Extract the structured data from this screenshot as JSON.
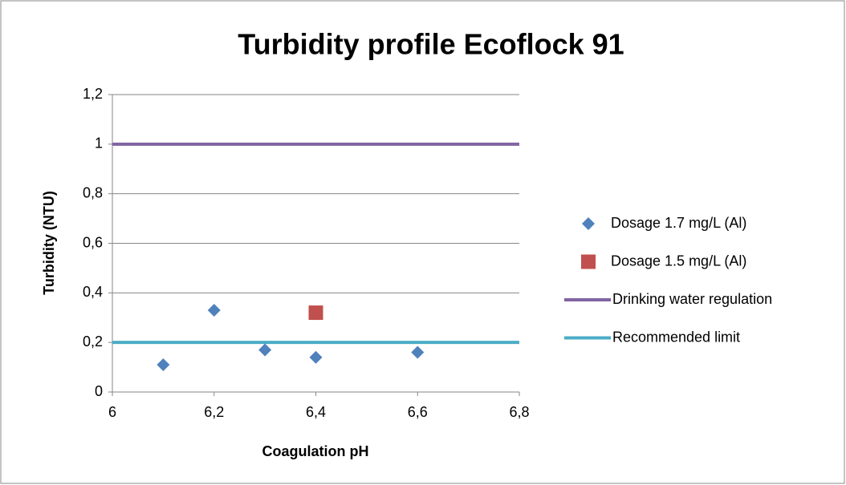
{
  "chart_data": {
    "type": "scatter",
    "title": "Turbidity profile Ecoflock 91",
    "x_label": "Coagulation pH",
    "y_label": "Turbidity (NTU)",
    "xlim": [
      6,
      6.8
    ],
    "xticks": [
      6,
      {
        "value": 6.2,
        "label": "6,2"
      },
      {
        "value": 6.4,
        "label": "6,4"
      },
      {
        "value": 6.6,
        "label": "6,6"
      },
      {
        "value": 6.8,
        "label": "6,8"
      }
    ],
    "ylim": [
      0,
      1.2
    ],
    "yticks": [
      0,
      {
        "value": 0.2,
        "label": "0,2"
      },
      {
        "value": 0.4,
        "label": "0,4"
      },
      {
        "value": 0.6,
        "label": "0,6"
      },
      {
        "value": 0.8,
        "label": "0,8"
      },
      1,
      {
        "value": 1.2,
        "label": "1,2"
      }
    ],
    "grid": true,
    "legend": "right",
    "series": [
      {
        "name": "Dosage 1.7 mg/L (Al)",
        "color": "#4f81bd",
        "style": "diamond",
        "x": [
          6.1,
          6.2,
          6.3,
          6.4,
          6.6
        ],
        "values": [
          0.11,
          0.33,
          0.17,
          0.14,
          0.16
        ]
      },
      {
        "name": "Dosage 1.5 mg/L (Al)",
        "color": "#c0504d",
        "style": "square",
        "x": [
          6.4
        ],
        "values": [
          0.32
        ]
      },
      {
        "name": "Drinking water regulation",
        "color": "#8064a2",
        "style": "line",
        "x": [
          6,
          6.8
        ],
        "values": [
          1,
          1
        ]
      },
      {
        "name": "Recommended limit",
        "color": "#4bacc6",
        "style": "line",
        "x": [
          6,
          6.8
        ],
        "values": [
          0.2,
          0.2
        ]
      }
    ]
  }
}
